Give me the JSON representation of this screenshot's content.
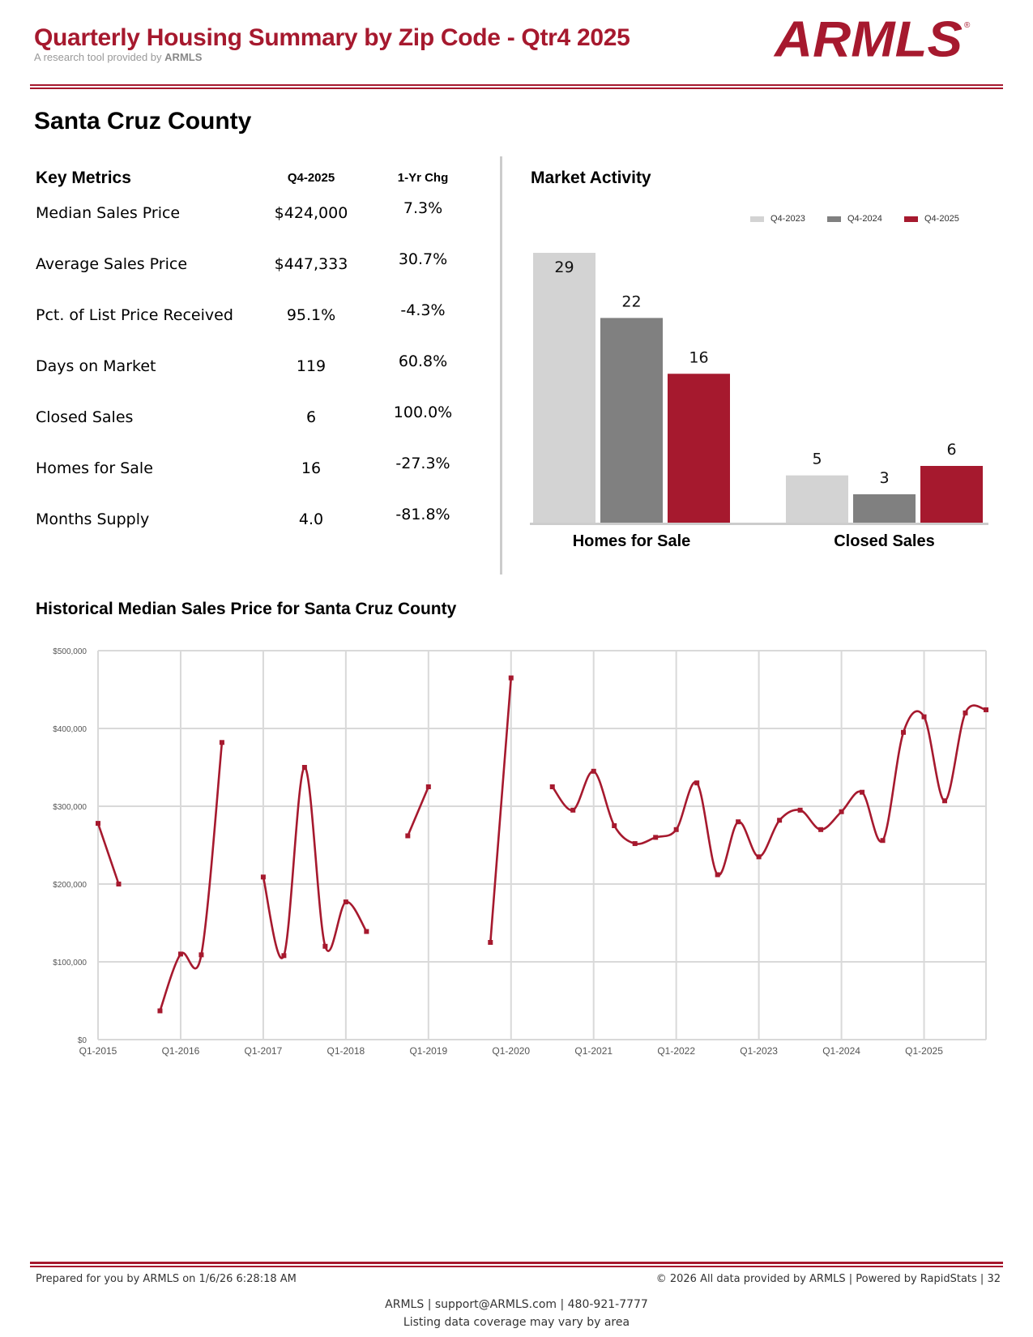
{
  "header": {
    "title": "Quarterly Housing Summary by Zip Code - Qtr4 2025",
    "subtitle_prefix": "A research tool provided by",
    "subtitle_brand": "ARMLS",
    "logo_text": "ARMLS"
  },
  "area": "Santa Cruz County",
  "key_metrics": {
    "heading": "Key Metrics",
    "col_current": "Q4-2025",
    "col_change": "1-Yr Chg",
    "rows": [
      {
        "label": "Median Sales Price",
        "value": "$424,000",
        "change": "7.3%"
      },
      {
        "label": "Average Sales Price",
        "value": "$447,333",
        "change": "30.7%"
      },
      {
        "label": "Pct. of List Price Received",
        "value": "95.1%",
        "change": "-4.3%"
      },
      {
        "label": "Days on Market",
        "value": "119",
        "change": "60.8%"
      },
      {
        "label": "Closed Sales",
        "value": "6",
        "change": "100.0%"
      },
      {
        "label": "Homes for Sale",
        "value": "16",
        "change": "-27.3%"
      },
      {
        "label": "Months Supply",
        "value": "4.0",
        "change": "-81.8%"
      }
    ]
  },
  "chart_data": [
    {
      "type": "bar",
      "title": "Market Activity",
      "categories": [
        "Homes for Sale",
        "Closed Sales"
      ],
      "series": [
        {
          "name": "Q4-2023",
          "color": "#d3d3d3",
          "values": [
            29,
            5
          ]
        },
        {
          "name": "Q4-2024",
          "color": "#808080",
          "values": [
            22,
            3
          ]
        },
        {
          "name": "Q4-2025",
          "color": "#a6192e",
          "values": [
            16,
            6
          ]
        }
      ],
      "legend": "top-right"
    },
    {
      "type": "line",
      "title": "Historical Median Sales Price for Santa Cruz County",
      "color": "#a6192e",
      "ylim": [
        0,
        500000
      ],
      "yticks": [
        "$0",
        "$100,000",
        "$200,000",
        "$300,000",
        "$400,000",
        "$500,000"
      ],
      "xticks": [
        "Q1-2015",
        "Q1-2016",
        "Q1-2017",
        "Q1-2018",
        "Q1-2019",
        "Q1-2020",
        "Q1-2021",
        "Q1-2022",
        "Q1-2023",
        "Q1-2024",
        "Q1-2025"
      ],
      "start": "Q1-2015",
      "grid": true,
      "values": [
        278000,
        200000,
        null,
        37000,
        110000,
        109000,
        382000,
        null,
        209000,
        108000,
        350000,
        120000,
        177000,
        139000,
        null,
        262000,
        325000,
        null,
        null,
        125000,
        465000,
        null,
        325000,
        295000,
        345000,
        275000,
        252000,
        260000,
        270000,
        330000,
        212000,
        280000,
        235000,
        282000,
        295000,
        270000,
        293000,
        318000,
        256000,
        395000,
        415000,
        307000,
        420000,
        424000
      ]
    }
  ],
  "footer": {
    "prepared": "Prepared for you by ARMLS on 1/6/26 6:28:18 AM",
    "rights": "© 2026 All data provided by ARMLS | Powered by RapidStats  | 32",
    "contact": "ARMLS | support@ARMLS.com | 480-921-7777",
    "note": "Listing data coverage may vary by area"
  }
}
